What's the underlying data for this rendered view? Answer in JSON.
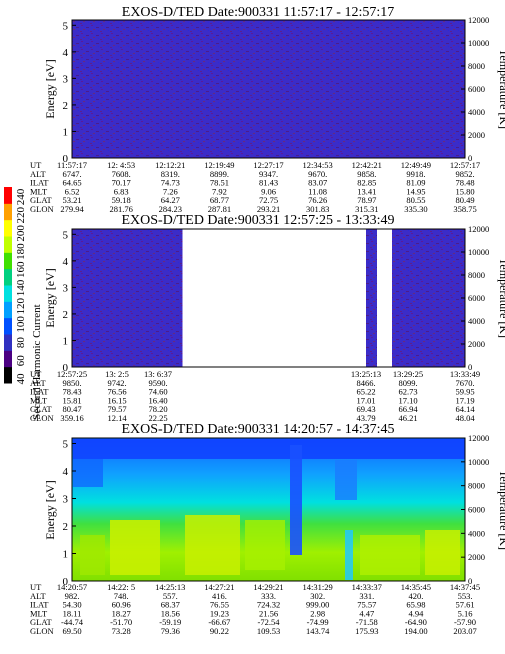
{
  "colorbar": {
    "label": "Second Harmonic Current",
    "ticks": [
      "40",
      "60",
      "80",
      "100",
      "120",
      "140",
      "160",
      "180",
      "200",
      "220",
      "240"
    ],
    "colors": [
      "#000000",
      "#4b0082",
      "#3030c0",
      "#0050ff",
      "#00a0ff",
      "#00e0e0",
      "#00d080",
      "#40e000",
      "#c0ff00",
      "#ffff00",
      "#ffa000",
      "#ff0000"
    ]
  },
  "panels": [
    {
      "title": "EXOS-D/TED   Date:900331   11:57:17 - 12:57:17",
      "ylabel_left": "Energy [eV]",
      "ylabel_right": "Temperature [K]",
      "yticks_left": [
        "0",
        "1",
        "2",
        "3",
        "4",
        "5"
      ],
      "yticks_right": [
        "0",
        "2000",
        "4000",
        "6000",
        "8000",
        "10000",
        "12000"
      ],
      "table": {
        "row_labels": [
          "UT",
          "ALT",
          "ILAT",
          "MLT",
          "GLAT",
          "GLON"
        ],
        "columns": [
          [
            "11:57:17",
            "6747.",
            "64.65",
            "6.52",
            "53.21",
            "279.94"
          ],
          [
            "12: 4:53",
            "7608.",
            "70.17",
            "6.83",
            "59.18",
            "281.76"
          ],
          [
            "12:12:21",
            "8319.",
            "74.73",
            "7.26",
            "64.27",
            "284.23"
          ],
          [
            "12:19:49",
            "8899.",
            "78.51",
            "7.92",
            "68.77",
            "287.81"
          ],
          [
            "12:27:17",
            "9347.",
            "81.43",
            "9.06",
            "72.75",
            "293.21"
          ],
          [
            "12:34:53",
            "9670.",
            "83.07",
            "11.08",
            "76.26",
            "301.83"
          ],
          [
            "12:42:21",
            "9858.",
            "82.85",
            "13.41",
            "78.97",
            "315.31"
          ],
          [
            "12:49:49",
            "9918.",
            "81.09",
            "14.95",
            "80.55",
            "335.30"
          ],
          [
            "12:57:17",
            "9852.",
            "78.48",
            "15.80",
            "80.49",
            "358.75"
          ]
        ]
      }
    },
    {
      "title": "EXOS-D/TED   Date:900331   12:57:25 - 13:33:49",
      "ylabel_left": "Energy [eV]",
      "ylabel_right": "Temperature [K]",
      "yticks_left": [
        "0",
        "1",
        "2",
        "3",
        "4",
        "5"
      ],
      "yticks_right": [
        "0",
        "2000",
        "4000",
        "6000",
        "8000",
        "10000",
        "12000"
      ],
      "table": {
        "row_labels": [
          "UT",
          "ALT",
          "ILAT",
          "MLT",
          "GLAT",
          "GLON"
        ],
        "columns": [
          [
            "12:57:25",
            "9850.",
            "78.43",
            "15.81",
            "80.47",
            "359.16"
          ],
          [
            "13: 2:5",
            "9742.",
            "76.56",
            "16.15",
            "79.57",
            "12.14"
          ],
          [
            "13: 6:37",
            "9590.",
            "74.60",
            "16.40",
            "78.20",
            "22.25"
          ],
          [
            "13:25:13",
            "8466.",
            "65.22",
            "17.01",
            "69.43",
            "43.79"
          ],
          [
            "13:29:25",
            "8099.",
            "62.73",
            "17.10",
            "66.94",
            "46.21"
          ],
          [
            "13:33:49",
            "7670.",
            "59.95",
            "17.19",
            "64.14",
            "48.04"
          ]
        ]
      }
    },
    {
      "title": "EXOS-D/TED   Date:900331   14:20:57 - 14:37:45",
      "ylabel_left": "Energy [eV]",
      "ylabel_right": "Temperature [K]",
      "yticks_left": [
        "0",
        "1",
        "2",
        "3",
        "4",
        "5"
      ],
      "yticks_right": [
        "0",
        "2000",
        "4000",
        "6000",
        "8000",
        "10000",
        "12000"
      ],
      "table": {
        "row_labels": [
          "UT",
          "ALT",
          "ILAT",
          "MLT",
          "GLAT",
          "GLON"
        ],
        "columns": [
          [
            "14:20:57",
            "982.",
            "54.30",
            "18.11",
            "-44.74",
            "69.50"
          ],
          [
            "14:22: 5",
            "748.",
            "60.96",
            "18.27",
            "-51.70",
            "73.28"
          ],
          [
            "14:25:13",
            "557.",
            "68.37",
            "18.56",
            "-59.19",
            "79.36"
          ],
          [
            "14:27:21",
            "416.",
            "76.55",
            "19.23",
            "-66.67",
            "90.22"
          ],
          [
            "14:29:21",
            "333.",
            "724.32",
            "21.56",
            "-72.54",
            "109.53"
          ],
          [
            "14:31:29",
            "302.",
            "999.00",
            "2.98",
            "-74.99",
            "143.74"
          ],
          [
            "14:33:37",
            "331.",
            "75.57",
            "4.47",
            "-71.58",
            "175.93"
          ],
          [
            "14:35:45",
            "420.",
            "65.98",
            "4.94",
            "-64.90",
            "194.00"
          ],
          [
            "14:37:45",
            "553.",
            "57.61",
            "5.16",
            "-57.90",
            "203.07"
          ]
        ]
      }
    }
  ],
  "chart_data": [
    {
      "type": "heatmap",
      "title": "EXOS-D/TED   Date:900331   11:57:17 - 12:57:17",
      "ylabel": "Energy [eV]",
      "ylabel_right": "Temperature [K]",
      "ylim": [
        0,
        5
      ],
      "ylim_right": [
        0,
        12000
      ],
      "x_range": [
        "11:57:17",
        "12:57:17"
      ],
      "values_description_level": "uniform low (~60-70)",
      "data_gaps": []
    },
    {
      "type": "heatmap",
      "title": "EXOS-D/TED   Date:900331   12:57:25 - 13:33:49",
      "ylabel": "Energy [eV]",
      "ylabel_right": "Temperature [K]",
      "ylim": [
        0,
        5
      ],
      "ylim_right": [
        0,
        12000
      ],
      "x_range": [
        "12:57:25",
        "13:33:49"
      ],
      "values_description_level": "uniform low (~60-70)",
      "data_gaps": [
        [
          "13: 6:37",
          "13:25:13"
        ]
      ]
    },
    {
      "type": "heatmap",
      "title": "EXOS-D/TED   Date:900331   14:20:57 - 14:37:45",
      "ylabel": "Energy [eV]",
      "ylabel_right": "Temperature [K]",
      "ylim": [
        0,
        5
      ],
      "ylim_right": [
        0,
        12000
      ],
      "x_range": [
        "14:20:57",
        "14:37:45"
      ],
      "values_description_level": "high (~180-220) below ~2 eV, mid (~120-150) 2-3 eV, low (~100) above",
      "data_gaps": []
    }
  ]
}
